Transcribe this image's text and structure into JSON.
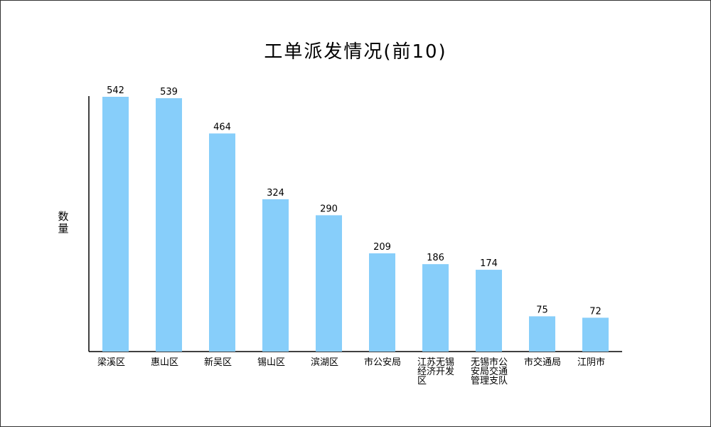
{
  "chart_data": {
    "type": "bar",
    "title": "工单派发情况(前10)",
    "ylabel": "数量",
    "xlabel": "",
    "categories": [
      "梁溪区",
      "惠山区",
      "新吴区",
      "锡山区",
      "滨湖区",
      "市公安局",
      "江苏无锡经济开发区",
      "无锡市公安局交通管理支队",
      "市交通局",
      "江阴市"
    ],
    "values": [
      542,
      539,
      464,
      324,
      290,
      209,
      186,
      174,
      75,
      72
    ],
    "ylim": [
      0,
      570
    ],
    "grid": false,
    "bar_color": "#87cefa",
    "axis_color": "#000000"
  }
}
